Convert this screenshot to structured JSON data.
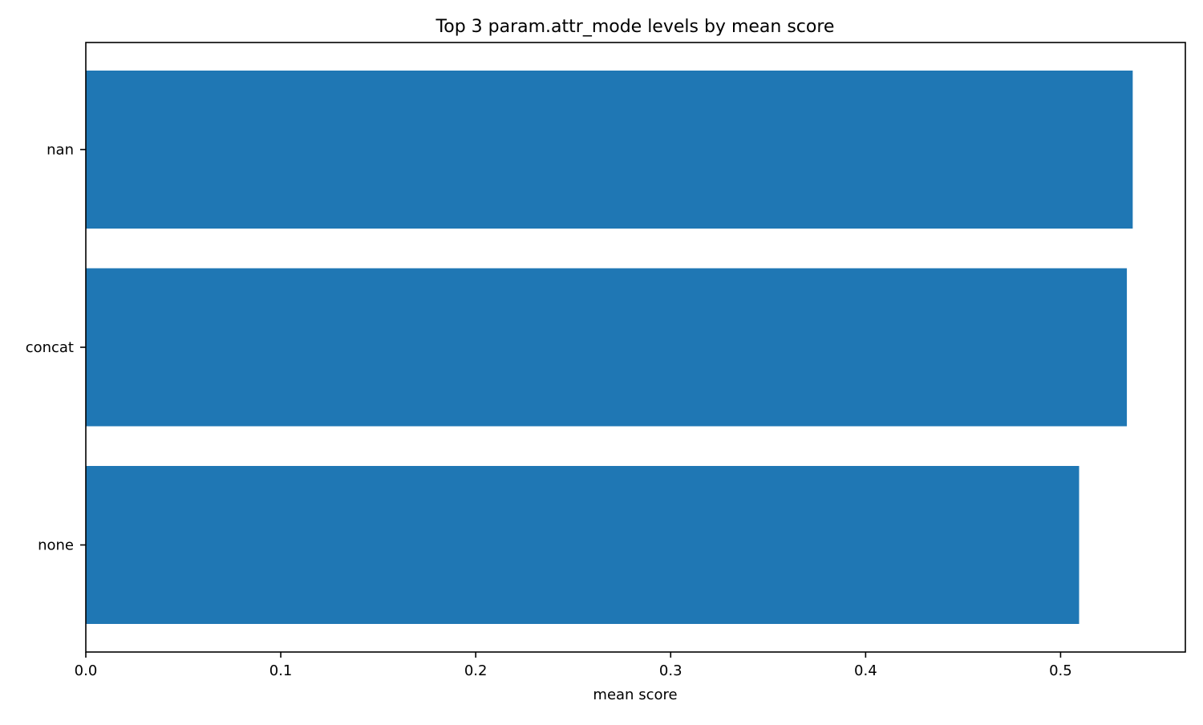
{
  "chart_data": {
    "type": "bar",
    "orientation": "horizontal",
    "title": "Top 3 param.attr_mode levels by mean score",
    "xlabel": "mean score",
    "ylabel": "",
    "categories": [
      "nan",
      "concat",
      "none"
    ],
    "values": [
      0.537,
      0.534,
      0.5095
    ],
    "xlim": [
      0,
      0.564
    ],
    "xticks": [
      0.0,
      0.1,
      0.2,
      0.3,
      0.4,
      0.5
    ],
    "xtick_labels": [
      "0.0",
      "0.1",
      "0.2",
      "0.3",
      "0.4",
      "0.5"
    ],
    "grid": false,
    "legend": "none",
    "colors": {
      "bar": "#1f77b4",
      "axes": "#000000",
      "background": "#ffffff"
    }
  }
}
